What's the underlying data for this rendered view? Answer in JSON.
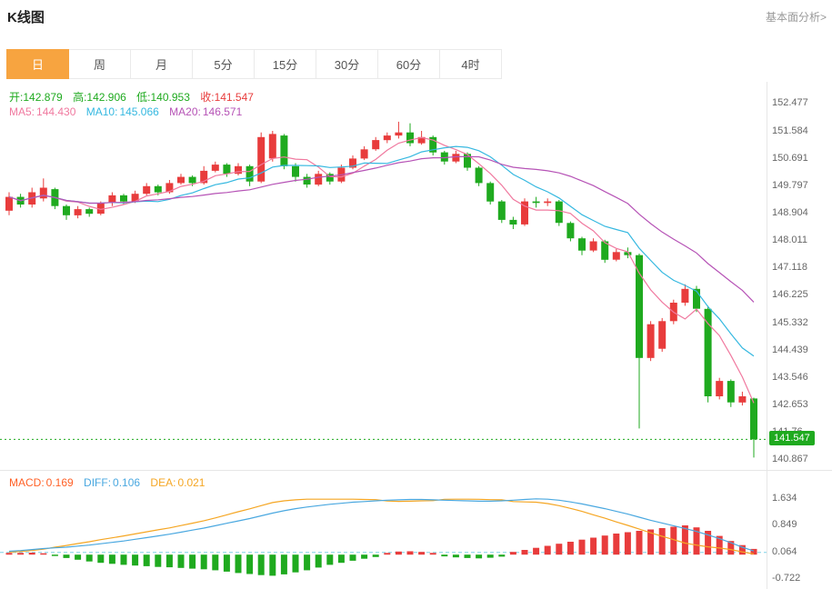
{
  "page": {
    "title": "K线图",
    "link_label": "基本面分析>"
  },
  "tabs": [
    {
      "label": "日",
      "active": true
    },
    {
      "label": "周",
      "active": false
    },
    {
      "label": "月",
      "active": false
    },
    {
      "label": "5分",
      "active": false
    },
    {
      "label": "15分",
      "active": false
    },
    {
      "label": "30分",
      "active": false
    },
    {
      "label": "60分",
      "active": false
    },
    {
      "label": "4时",
      "active": false
    }
  ],
  "info": {
    "open_label": "开:",
    "open_value": "142.879",
    "high_label": "高:",
    "high_value": "142.906",
    "low_label": "低:",
    "low_value": "140.953",
    "close_label": "收:",
    "close_value": "141.547",
    "ma5_label": "MA5:",
    "ma5_value": "144.430",
    "ma10_label": "MA10:",
    "ma10_value": "145.066",
    "ma20_label": "MA20:",
    "ma20_value": "146.571"
  },
  "macd_info": {
    "macd_label": "MACD:",
    "macd_value": "0.169",
    "diff_label": "DIFF:",
    "diff_value": "0.106",
    "dea_label": "DEA:",
    "dea_value": "0.021"
  },
  "colors": {
    "up": "#e83c3c",
    "down": "#1faa1f",
    "ma5": "#f0799f",
    "ma10": "#35b8e0",
    "ma20": "#b653b6",
    "diff": "#4aa8e0",
    "dea": "#f5a623",
    "tab_active": "#f7a440",
    "badge": "#1faa1f",
    "guide": "#7fd0e6"
  },
  "chart_data": {
    "type": "candlestick",
    "main": {
      "ylim": [
        140.55,
        153.2
      ],
      "y_ticks": [
        "152.477",
        "151.584",
        "150.691",
        "149.797",
        "148.904",
        "148.011",
        "147.118",
        "146.225",
        "145.332",
        "144.439",
        "143.546",
        "142.653",
        "141.76",
        "140.867"
      ],
      "last_price": 141.547,
      "last_price_label": "141.547",
      "candles": [
        [
          149.0,
          149.6,
          148.85,
          149.45
        ],
        [
          149.45,
          149.55,
          149.1,
          149.2
        ],
        [
          149.2,
          149.75,
          149.1,
          149.6
        ],
        [
          149.4,
          150.05,
          149.3,
          149.75
        ],
        [
          149.7,
          149.75,
          149.05,
          149.15
        ],
        [
          149.15,
          149.2,
          148.7,
          148.85
        ],
        [
          148.85,
          149.15,
          148.75,
          149.05
        ],
        [
          149.05,
          149.1,
          148.8,
          148.9
        ],
        [
          148.9,
          149.3,
          148.85,
          149.25
        ],
        [
          149.25,
          149.6,
          149.15,
          149.5
        ],
        [
          149.5,
          149.55,
          149.2,
          149.3
        ],
        [
          149.3,
          149.65,
          149.25,
          149.55
        ],
        [
          149.55,
          149.9,
          149.5,
          149.8
        ],
        [
          149.8,
          149.85,
          149.5,
          149.6
        ],
        [
          149.6,
          150.0,
          149.55,
          149.9
        ],
        [
          149.9,
          150.2,
          149.85,
          150.1
        ],
        [
          150.1,
          150.15,
          149.8,
          149.9
        ],
        [
          149.9,
          150.45,
          149.85,
          150.3
        ],
        [
          150.3,
          150.6,
          150.25,
          150.5
        ],
        [
          150.5,
          150.55,
          150.1,
          150.2
        ],
        [
          150.2,
          150.55,
          150.15,
          150.45
        ],
        [
          150.45,
          150.5,
          149.8,
          149.95
        ],
        [
          149.95,
          151.55,
          149.9,
          151.4
        ],
        [
          150.7,
          151.6,
          150.6,
          151.5
        ],
        [
          151.45,
          151.5,
          150.35,
          150.45
        ],
        [
          150.45,
          150.55,
          149.95,
          150.1
        ],
        [
          150.1,
          150.2,
          149.75,
          149.85
        ],
        [
          149.85,
          150.3,
          149.8,
          150.2
        ],
        [
          150.2,
          150.25,
          149.85,
          149.95
        ],
        [
          149.95,
          150.5,
          149.9,
          150.4
        ],
        [
          150.4,
          150.8,
          150.35,
          150.7
        ],
        [
          150.7,
          151.1,
          150.65,
          151.0
        ],
        [
          151.0,
          151.4,
          150.95,
          151.3
        ],
        [
          151.3,
          151.55,
          151.2,
          151.45
        ],
        [
          151.45,
          151.9,
          151.35,
          151.55
        ],
        [
          151.55,
          151.85,
          151.1,
          151.2
        ],
        [
          151.2,
          151.6,
          151.15,
          151.4
        ],
        [
          151.4,
          151.45,
          150.8,
          150.9
        ],
        [
          150.9,
          150.95,
          150.5,
          150.6
        ],
        [
          150.6,
          150.95,
          150.55,
          150.85
        ],
        [
          150.85,
          150.9,
          150.3,
          150.4
        ],
        [
          150.4,
          150.45,
          149.8,
          149.9
        ],
        [
          149.9,
          149.95,
          149.2,
          149.3
        ],
        [
          149.3,
          149.35,
          148.6,
          148.7
        ],
        [
          148.7,
          148.8,
          148.4,
          148.55
        ],
        [
          148.55,
          149.4,
          148.5,
          149.3
        ],
        [
          149.3,
          149.45,
          149.1,
          149.25
        ],
        [
          149.25,
          149.4,
          149.15,
          149.3
        ],
        [
          149.3,
          149.35,
          148.5,
          148.6
        ],
        [
          148.6,
          148.65,
          148.0,
          148.1
        ],
        [
          148.1,
          148.15,
          147.55,
          147.7
        ],
        [
          147.7,
          148.1,
          147.65,
          148.0
        ],
        [
          148.0,
          148.05,
          147.3,
          147.4
        ],
        [
          147.4,
          147.75,
          147.35,
          147.65
        ],
        [
          147.65,
          147.8,
          147.45,
          147.55
        ],
        [
          147.55,
          147.6,
          141.9,
          144.2
        ],
        [
          144.2,
          145.4,
          144.1,
          145.3
        ],
        [
          144.5,
          145.5,
          144.4,
          145.4
        ],
        [
          145.4,
          146.1,
          145.3,
          146.0
        ],
        [
          146.0,
          146.6,
          145.9,
          146.45
        ],
        [
          146.45,
          146.55,
          145.7,
          145.8
        ],
        [
          145.8,
          145.9,
          142.75,
          142.95
        ],
        [
          142.95,
          143.55,
          142.85,
          143.45
        ],
        [
          143.45,
          143.5,
          142.6,
          142.75
        ],
        [
          142.75,
          143.1,
          142.65,
          142.95
        ],
        [
          142.879,
          142.906,
          140.953,
          141.547
        ]
      ]
    },
    "macd": {
      "ylim": [
        -1.036,
        2.462
      ],
      "y_ticks": [
        "1.634",
        "0.849",
        "0.064",
        "-0.722"
      ],
      "zero_guide": 0.064,
      "histogram": [
        0.05,
        0.05,
        0.06,
        0.04,
        -0.04,
        -0.1,
        -0.15,
        -0.2,
        -0.24,
        -0.27,
        -0.3,
        -0.32,
        -0.34,
        -0.36,
        -0.37,
        -0.39,
        -0.41,
        -0.43,
        -0.46,
        -0.5,
        -0.54,
        -0.57,
        -0.6,
        -0.62,
        -0.58,
        -0.52,
        -0.46,
        -0.38,
        -0.3,
        -0.24,
        -0.18,
        -0.12,
        -0.07,
        0.05,
        0.09,
        0.1,
        0.08,
        0.05,
        -0.05,
        -0.08,
        -0.1,
        -0.11,
        -0.09,
        -0.06,
        0.08,
        0.14,
        0.2,
        0.26,
        0.32,
        0.38,
        0.44,
        0.5,
        0.56,
        0.62,
        0.66,
        0.7,
        0.74,
        0.78,
        0.82,
        0.86,
        0.8,
        0.7,
        0.55,
        0.4,
        0.28,
        0.169
      ],
      "diff_line": [
        0.1,
        0.12,
        0.15,
        0.18,
        0.2,
        0.22,
        0.25,
        0.28,
        0.32,
        0.36,
        0.4,
        0.45,
        0.5,
        0.55,
        0.6,
        0.66,
        0.72,
        0.78,
        0.85,
        0.92,
        0.99,
        1.06,
        1.14,
        1.22,
        1.29,
        1.35,
        1.4,
        1.44,
        1.48,
        1.51,
        1.54,
        1.56,
        1.58,
        1.6,
        1.61,
        1.62,
        1.62,
        1.61,
        1.6,
        1.59,
        1.58,
        1.57,
        1.57,
        1.58,
        1.6,
        1.62,
        1.64,
        1.63,
        1.6,
        1.55,
        1.49,
        1.42,
        1.35,
        1.27,
        1.19,
        1.1,
        1.01,
        0.93,
        0.85,
        0.77,
        0.68,
        0.58,
        0.47,
        0.35,
        0.22,
        0.106
      ]
    }
  }
}
